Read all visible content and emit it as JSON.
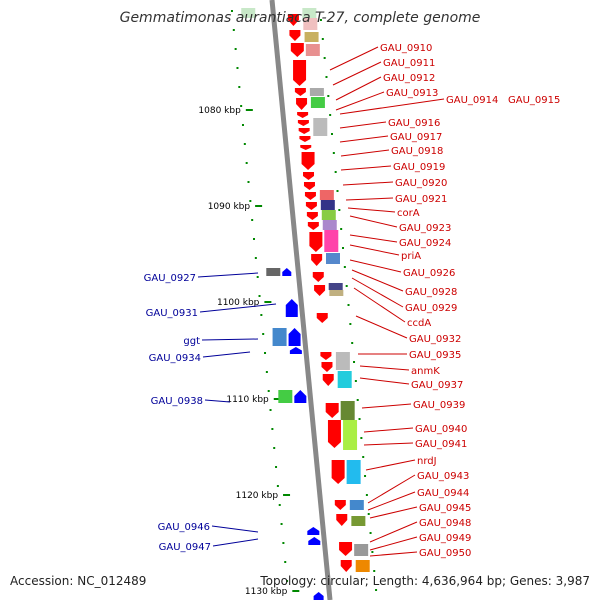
{
  "title": "Gemmatimonas aurantiaca T-27, complete genome",
  "footer": {
    "accession": "Accession: NC_012489",
    "summary": "Topology: circular; Length: 4,636,964 bp; Genes: 3,987"
  },
  "scale_labels": [
    "1080 kbp",
    "1090 kbp",
    "1100 kbp",
    "1110 kbp",
    "1120 kbp",
    "1130 kbp"
  ],
  "colors": {
    "forward_gene": "#ff0000",
    "reverse_gene": "#0000ff",
    "backbone": "#888888",
    "tick": "#008800",
    "forward_label": "#cc0000",
    "reverse_label": "#000099"
  },
  "forward_labels": [
    "GAU_0910",
    "GAU_0911",
    "GAU_0912",
    "GAU_0913",
    "GAU_0914",
    "GAU_0915",
    "GAU_0916",
    "GAU_0917",
    "GAU_0918",
    "GAU_0919",
    "GAU_0920",
    "GAU_0921",
    "corA",
    "GAU_0923",
    "GAU_0924",
    "priA",
    "GAU_0926",
    "GAU_0928",
    "GAU_0929",
    "ccdA",
    "GAU_0932",
    "GAU_0935",
    "anmK",
    "GAU_0937",
    "GAU_0939",
    "GAU_0940",
    "GAU_0941",
    "nrdJ",
    "GAU_0943",
    "GAU_0944",
    "GAU_0945",
    "GAU_0948",
    "GAU_0949",
    "GAU_0950"
  ],
  "reverse_labels": [
    "GAU_0927",
    "GAU_0931",
    "ggt",
    "GAU_0934",
    "GAU_0938",
    "GAU_0946",
    "GAU_0947"
  ]
}
